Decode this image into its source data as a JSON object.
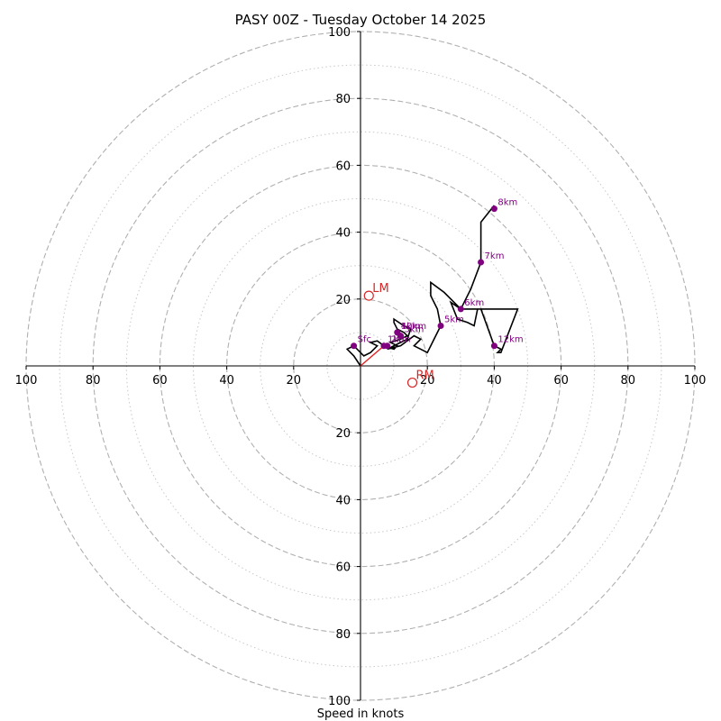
{
  "chart_data": {
    "type": "hodograph",
    "title": "PASY 00Z - Tuesday October 14 2025",
    "xlabel": "Speed in knots",
    "units": "knots",
    "range": [
      -100,
      100
    ],
    "ring_major": [
      20,
      40,
      60,
      80,
      100
    ],
    "ring_minor": [
      10,
      30,
      50,
      70,
      90
    ],
    "tick_labels": [
      "100",
      "80",
      "60",
      "40",
      "20",
      "20",
      "40",
      "60",
      "80",
      "100"
    ],
    "y_tick_labels": [
      "100",
      "80",
      "60",
      "40",
      "20",
      "20",
      "40",
      "60",
      "80",
      "100"
    ],
    "colors": {
      "trace": "#000000",
      "points": "#800080",
      "storm": "#d62728",
      "grid": "#b0b0b0",
      "shear": "#e32020"
    },
    "trace": [
      [
        0,
        0
      ],
      [
        -2,
        3
      ],
      [
        -4,
        5
      ],
      [
        -2,
        6
      ],
      [
        1,
        3
      ],
      [
        3,
        4
      ],
      [
        5,
        6
      ],
      [
        3,
        7
      ],
      [
        5,
        7.5
      ],
      [
        7,
        6
      ],
      [
        10,
        5
      ],
      [
        11,
        6
      ],
      [
        9,
        7
      ],
      [
        12,
        8
      ],
      [
        14,
        9
      ],
      [
        13,
        10
      ],
      [
        11,
        11
      ],
      [
        10,
        13
      ],
      [
        10,
        14
      ],
      [
        13,
        12
      ],
      [
        15,
        11
      ],
      [
        14,
        8
      ],
      [
        12,
        7
      ],
      [
        8,
        5
      ],
      [
        12,
        6
      ],
      [
        16,
        9
      ],
      [
        18,
        8
      ],
      [
        16,
        6
      ],
      [
        20,
        4
      ],
      [
        24,
        12
      ],
      [
        23,
        17
      ],
      [
        21,
        21
      ],
      [
        21,
        25
      ],
      [
        25,
        22
      ],
      [
        30,
        17
      ],
      [
        27,
        19
      ],
      [
        29,
        14
      ],
      [
        32,
        13
      ],
      [
        34,
        12
      ],
      [
        35,
        17
      ],
      [
        47,
        17
      ],
      [
        42,
        4
      ],
      [
        41,
        4
      ],
      [
        42,
        5
      ],
      [
        40,
        6
      ],
      [
        40,
        6
      ],
      [
        36,
        17
      ],
      [
        30,
        17
      ],
      [
        33,
        23
      ],
      [
        36,
        31
      ],
      [
        36,
        36
      ],
      [
        36,
        43
      ],
      [
        40,
        48
      ]
    ],
    "height_points": [
      {
        "label": "Sfc",
        "u": -2,
        "v": 6
      },
      {
        "label": "1km",
        "u": 7,
        "v": 6
      },
      {
        "label": "2km",
        "u": 8,
        "v": 6
      },
      {
        "label": "3km",
        "u": 12,
        "v": 9
      },
      {
        "label": "4km",
        "u": 11,
        "v": 10
      },
      {
        "label": "5km",
        "u": 24,
        "v": 12
      },
      {
        "label": "6km",
        "u": 30,
        "v": 17
      },
      {
        "label": "7km",
        "u": 36,
        "v": 31
      },
      {
        "label": "8km",
        "u": 40,
        "v": 47
      },
      {
        "label": "10km",
        "u": 11,
        "v": 10
      },
      {
        "label": "12km",
        "u": 40,
        "v": 6
      }
    ],
    "storm_motion": [
      {
        "label": "LM",
        "u": 2.5,
        "v": 21
      },
      {
        "label": "RM",
        "u": 15.5,
        "v": -5
      }
    ],
    "shear_vector": {
      "from": [
        0,
        0
      ],
      "to": [
        7,
        6
      ]
    }
  }
}
